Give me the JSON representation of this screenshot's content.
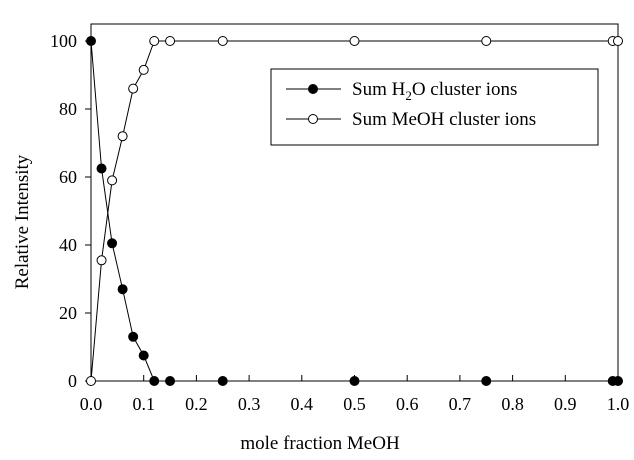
{
  "chart_data": {
    "type": "line",
    "xlabel": "mole fraction MeOH",
    "ylabel": "Relative Intensity",
    "xlim": [
      0.0,
      1.0
    ],
    "ylim": [
      0,
      105
    ],
    "xticks": [
      "0.0",
      "0.1",
      "0.2",
      "0.3",
      "0.4",
      "0.5",
      "0.6",
      "0.7",
      "0.8",
      "0.9",
      "1.0"
    ],
    "yticks": [
      "0",
      "20",
      "40",
      "60",
      "80",
      "100"
    ],
    "legend_position": "upper-right",
    "series": [
      {
        "name": "Sum H2O cluster ions",
        "name_main": "Sum H",
        "name_sub": "2",
        "name_rest": "O cluster ions",
        "marker": "filled-circle",
        "color": "#000000",
        "x": [
          0.0,
          0.02,
          0.04,
          0.06,
          0.08,
          0.1,
          0.12,
          0.15,
          0.25,
          0.5,
          0.75,
          0.99,
          1.0
        ],
        "y": [
          100,
          62.5,
          40.5,
          27,
          13,
          7.5,
          0,
          0,
          0,
          0,
          0,
          0,
          0
        ]
      },
      {
        "name": "Sum MeOH cluster ions",
        "marker": "open-circle",
        "color": "#000000",
        "x": [
          0.0,
          0.02,
          0.04,
          0.06,
          0.08,
          0.1,
          0.12,
          0.15,
          0.25,
          0.5,
          0.75,
          0.99,
          1.0
        ],
        "y": [
          0,
          35.5,
          59,
          72,
          86,
          91.5,
          100,
          100,
          100,
          100,
          100,
          100,
          100
        ]
      }
    ]
  }
}
